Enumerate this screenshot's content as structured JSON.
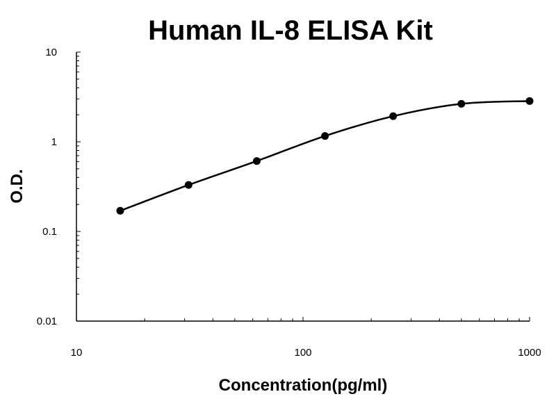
{
  "chart_data": {
    "type": "line",
    "title": "Human IL-8 ELISA Kit",
    "xlabel": "Concentration(pg/ml)",
    "ylabel": "O.D.",
    "xscale": "log",
    "yscale": "log",
    "xlim": [
      10,
      1000
    ],
    "ylim": [
      0.01,
      10
    ],
    "x_ticks": [
      "10",
      "100",
      "1000"
    ],
    "y_ticks": [
      "0.01",
      "0.1",
      "1",
      "10"
    ],
    "grid": false,
    "markers": true,
    "series": [
      {
        "x": [
          15.6,
          31.25,
          62.5,
          125,
          250,
          500,
          1000
        ],
        "y": [
          0.17,
          0.33,
          0.61,
          1.16,
          1.93,
          2.65,
          2.85
        ]
      }
    ],
    "color": "#000000"
  }
}
